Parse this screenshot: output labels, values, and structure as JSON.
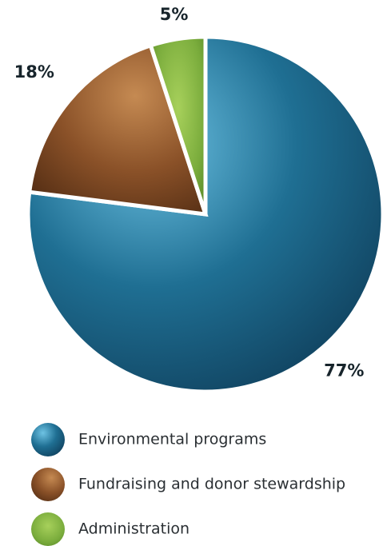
{
  "chart_data": {
    "type": "pie",
    "categories": [
      "Environmental programs",
      "Fundraising and donor stewardship",
      "Administration"
    ],
    "values": [
      77,
      18,
      5
    ],
    "value_labels": [
      "77%",
      "18%",
      "5%"
    ],
    "colors": [
      "#1f6f93",
      "#8a5128",
      "#7aac3c"
    ]
  }
}
